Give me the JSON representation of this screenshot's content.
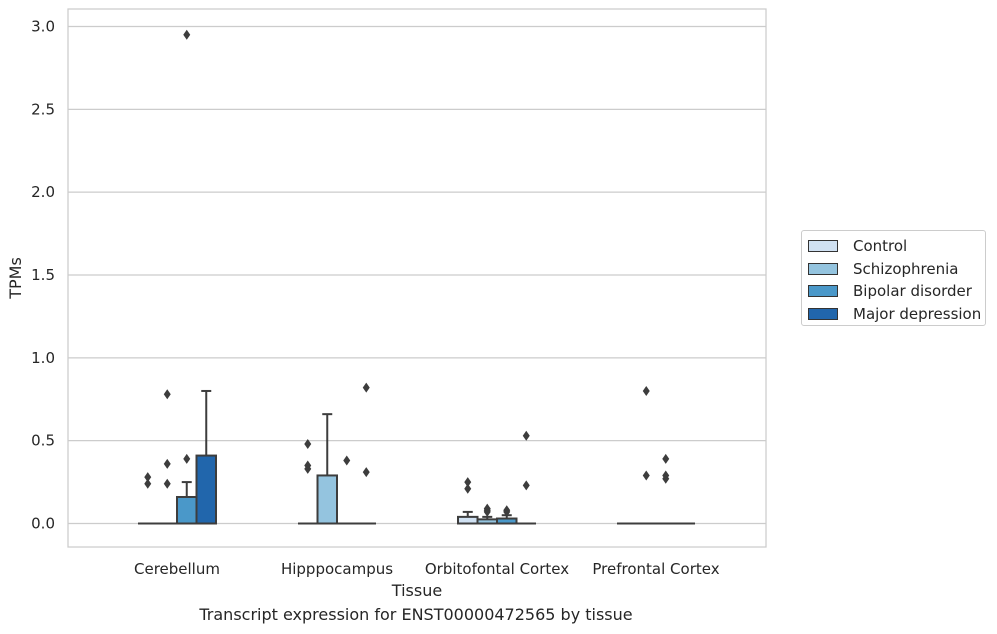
{
  "caption": "Transcript expression for ENST00000472565 by tissue",
  "chart_data": {
    "type": "box",
    "xlabel": "Tissue",
    "ylabel": "TPMs",
    "ylim": [
      -0.14,
      3.1
    ],
    "yticks": [
      "0.0",
      "0.5",
      "1.0",
      "1.5",
      "2.0",
      "2.5",
      "3.0"
    ],
    "ytick_values": [
      0,
      0.5,
      1.0,
      1.5,
      2.0,
      2.5,
      3.0
    ],
    "grid": true,
    "legend_position": "right",
    "categories": [
      "Cerebellum",
      "Hipppocampus",
      "Orbitofontal Cortex",
      "Prefrontal Cortex"
    ],
    "series": [
      {
        "name": "Control",
        "color": "#d0e1f2",
        "boxes": [
          {
            "q1": 0,
            "median": 0,
            "q3": 0,
            "whisker_low": 0,
            "whisker_high": 0,
            "outliers": [
              0.28,
              0.24
            ]
          },
          {
            "q1": 0,
            "median": 0,
            "q3": 0,
            "whisker_low": 0,
            "whisker_high": 0,
            "outliers": [
              0.48,
              0.35,
              0.33
            ]
          },
          {
            "q1": 0,
            "median": 0,
            "q3": 0.04,
            "whisker_low": 0,
            "whisker_high": 0.07,
            "outliers": [
              0.25,
              0.21
            ]
          },
          {
            "q1": 0,
            "median": 0,
            "q3": 0,
            "whisker_low": 0,
            "whisker_high": 0,
            "outliers": []
          }
        ]
      },
      {
        "name": "Schizophrenia",
        "color": "#94c4df",
        "boxes": [
          {
            "q1": 0,
            "median": 0,
            "q3": 0,
            "whisker_low": 0,
            "whisker_high": 0,
            "outliers": [
              0.78,
              0.36,
              0.24
            ]
          },
          {
            "q1": 0,
            "median": 0,
            "q3": 0.29,
            "whisker_low": 0,
            "whisker_high": 0.66,
            "outliers": []
          },
          {
            "q1": 0,
            "median": 0,
            "q3": 0.025,
            "whisker_low": 0,
            "whisker_high": 0.04,
            "outliers": [
              0.09,
              0.08,
              0.07
            ]
          },
          {
            "q1": 0,
            "median": 0,
            "q3": 0,
            "whisker_low": 0,
            "whisker_high": 0,
            "outliers": [
              0.8,
              0.29
            ]
          }
        ]
      },
      {
        "name": "Bipolar disorder",
        "color": "#4a98c9",
        "boxes": [
          {
            "q1": 0,
            "median": 0,
            "q3": 0.16,
            "whisker_low": 0,
            "whisker_high": 0.25,
            "outliers": [
              2.95,
              0.39
            ]
          },
          {
            "q1": 0,
            "median": 0,
            "q3": 0,
            "whisker_low": 0,
            "whisker_high": 0,
            "outliers": [
              0.38
            ]
          },
          {
            "q1": 0,
            "median": 0,
            "q3": 0.03,
            "whisker_low": 0,
            "whisker_high": 0.05,
            "outliers": [
              0.08,
              0.07
            ]
          },
          {
            "q1": 0,
            "median": 0,
            "q3": 0,
            "whisker_low": 0,
            "whisker_high": 0,
            "outliers": [
              0.39,
              0.29,
              0.27
            ]
          }
        ]
      },
      {
        "name": "Major depression",
        "color": "#2166ac",
        "boxes": [
          {
            "q1": 0,
            "median": 0,
            "q3": 0.41,
            "whisker_low": 0,
            "whisker_high": 0.8,
            "outliers": []
          },
          {
            "q1": 0,
            "median": 0,
            "q3": 0,
            "whisker_low": 0,
            "whisker_high": 0,
            "outliers": [
              0.82,
              0.31
            ]
          },
          {
            "q1": 0,
            "median": 0,
            "q3": 0,
            "whisker_low": 0,
            "whisker_high": 0,
            "outliers": [
              0.53,
              0.23
            ]
          },
          {
            "q1": 0,
            "median": 0,
            "q3": 0,
            "whisker_low": 0,
            "whisker_high": 0,
            "outliers": []
          }
        ]
      }
    ]
  }
}
